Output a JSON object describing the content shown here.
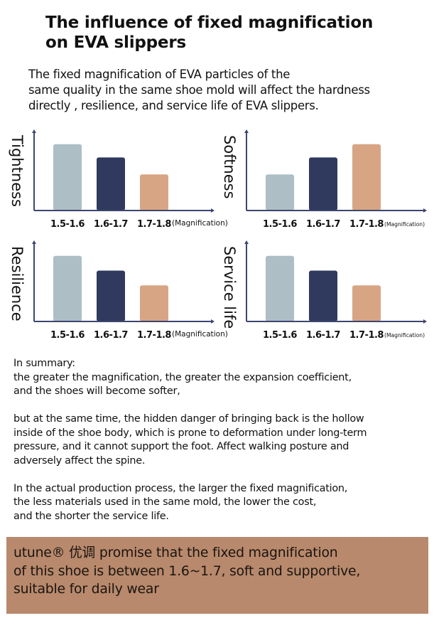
{
  "header": {
    "title_line1": "The influence of fixed magnification",
    "title_line2": "on EVA slippers"
  },
  "intro": {
    "line1": "The fixed magnification of EVA particles of the",
    "line2": "same quality in the same shoe mold will affect the hardness",
    "line3": "directly , resilience, and service life of EVA slippers."
  },
  "colors": {
    "bar_1": "#adbec5",
    "bar_2": "#2f3a5e",
    "bar_3": "#d8a584",
    "axis": "#3d4670",
    "promise_bg": "#b8896c"
  },
  "chart_data": [
    {
      "type": "bar",
      "ylabel": "Tightness",
      "xlabel": "(Magnification)",
      "categories": [
        "1.5-1.6",
        "1.6-1.7",
        "1.7-1.8"
      ],
      "values": [
        90,
        72,
        49
      ],
      "ylim": [
        0,
        110
      ],
      "grid": false
    },
    {
      "type": "bar",
      "ylabel": "Softness",
      "xlabel": "(Magnification)",
      "categories": [
        "1.5-1.6",
        "1.6-1.7",
        "1.7-1.8"
      ],
      "values": [
        49,
        72,
        90
      ],
      "ylim": [
        0,
        110
      ],
      "grid": false
    },
    {
      "type": "bar",
      "ylabel": "Resilience",
      "xlabel": "(Magnification)",
      "categories": [
        "1.5-1.6",
        "1.6-1.7",
        "1.7-1.8"
      ],
      "values": [
        89,
        69,
        49
      ],
      "ylim": [
        0,
        110
      ],
      "grid": false
    },
    {
      "type": "bar",
      "ylabel": "Service life",
      "xlabel": "(Magnification)",
      "categories": [
        "1.5-1.6",
        "1.6-1.7",
        "1.7-1.8"
      ],
      "values": [
        89,
        69,
        49
      ],
      "ylim": [
        0,
        110
      ],
      "grid": false
    }
  ],
  "summary": {
    "heading": "In summary:",
    "p1_line1": "the greater the magnification, the greater the expansion coefficient,",
    "p1_line2": "and the shoes will become softer,",
    "p2_line1": "but at the same time, the hidden danger of bringing back is the hollow",
    "p2_line2": "inside of the shoe body, which is prone to deformation under long-term",
    "p2_line3": "pressure, and it cannot support the foot. Affect walking posture and",
    "p2_line4": "adversely affect the spine.",
    "p3_line1": "In the actual production process, the larger the fixed magnification,",
    "p3_line2": "the less materials used in the same mold, the lower the cost,",
    "p3_line3": "and the shorter the service life."
  },
  "promise": {
    "line1": "utune® 优调 promise that the fixed magnification",
    "line2": "of this shoe is between 1.6~1.7, soft and supportive,",
    "line3": "suitable for daily wear"
  }
}
